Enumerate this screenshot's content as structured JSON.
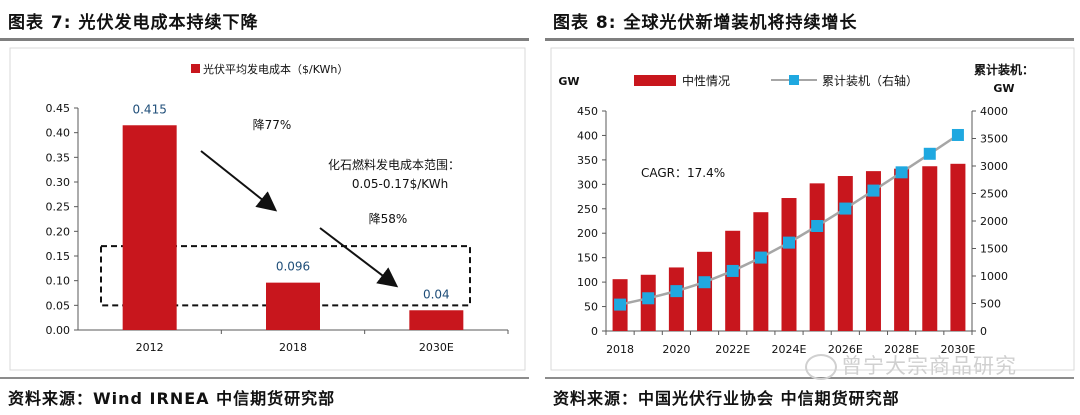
{
  "left_figure": {
    "title": "图表 7:  光伏发电成本持续下降",
    "source": "资料来源：Wind IRNEA  中信期货研究部"
  },
  "right_figure": {
    "title": "图表 8:  全球光伏新增装机将持续增长",
    "source": "资料来源：中国光伏行业协会 中信期货研究部"
  },
  "watermark": "曾宁大宗商品研究",
  "chart_data": [
    {
      "type": "bar",
      "categories": [
        "2012",
        "2018",
        "2030E"
      ],
      "series": [
        {
          "name": "光伏平均发电成本（$/KWh）",
          "values": [
            0.415,
            0.096,
            0.04
          ],
          "color": "#c8161d"
        }
      ],
      "data_labels": [
        "0.415",
        "0.096",
        "0.04"
      ],
      "y_ticks": [
        "0.45",
        "0.40",
        "0.35",
        "0.30",
        "0.25",
        "0.20",
        "0.15",
        "0.10",
        "0.05",
        "0.00"
      ],
      "ylim": [
        0,
        0.45
      ],
      "reference_range": {
        "label_line1": "化石燃料发电成本范围：",
        "label_line2": "0.05-0.17$/KWh",
        "low": 0.05,
        "high": 0.17
      },
      "annotations": [
        "降77%",
        "降58%"
      ],
      "legend_position": "top-center",
      "grid": false
    },
    {
      "type": "bar",
      "x": [
        2018,
        2019,
        2020,
        2021,
        2022,
        2023,
        2024,
        2025,
        2026,
        2027,
        2028,
        2029,
        2030
      ],
      "x_tick_labels": [
        "2018",
        "2020",
        "2022E",
        "2024E",
        "2026E",
        "2028E",
        "2030E"
      ],
      "series": [
        {
          "name": "中性情况",
          "type": "bar",
          "axis": "left",
          "color": "#c8161d",
          "values": [
            106,
            115,
            130,
            162,
            205,
            243,
            272,
            302,
            317,
            327,
            332,
            337,
            342
          ]
        },
        {
          "name": "累计装机（右轴）",
          "type": "line",
          "axis": "right",
          "color": "#a6a6a6",
          "marker_color": "#1fa8e0",
          "values": [
            480,
            595,
            725,
            887,
            1092,
            1335,
            1607,
            1909,
            2226,
            2553,
            2885,
            3222,
            3564
          ]
        }
      ],
      "left_axis_unit": "GW",
      "right_axis_unit_line1": "累计装机：",
      "right_axis_unit_line2": "GW",
      "y_left_ticks": [
        "450",
        "400",
        "350",
        "300",
        "250",
        "200",
        "150",
        "100",
        "50",
        "0"
      ],
      "y_right_ticks": [
        "4000",
        "3500",
        "3000",
        "2500",
        "2000",
        "1500",
        "1000",
        "500",
        "0"
      ],
      "ylim_left": [
        0,
        450
      ],
      "ylim_right": [
        0,
        4000
      ],
      "annotations": [
        "CAGR：17.4%"
      ],
      "legend_position": "top",
      "grid": false
    }
  ]
}
